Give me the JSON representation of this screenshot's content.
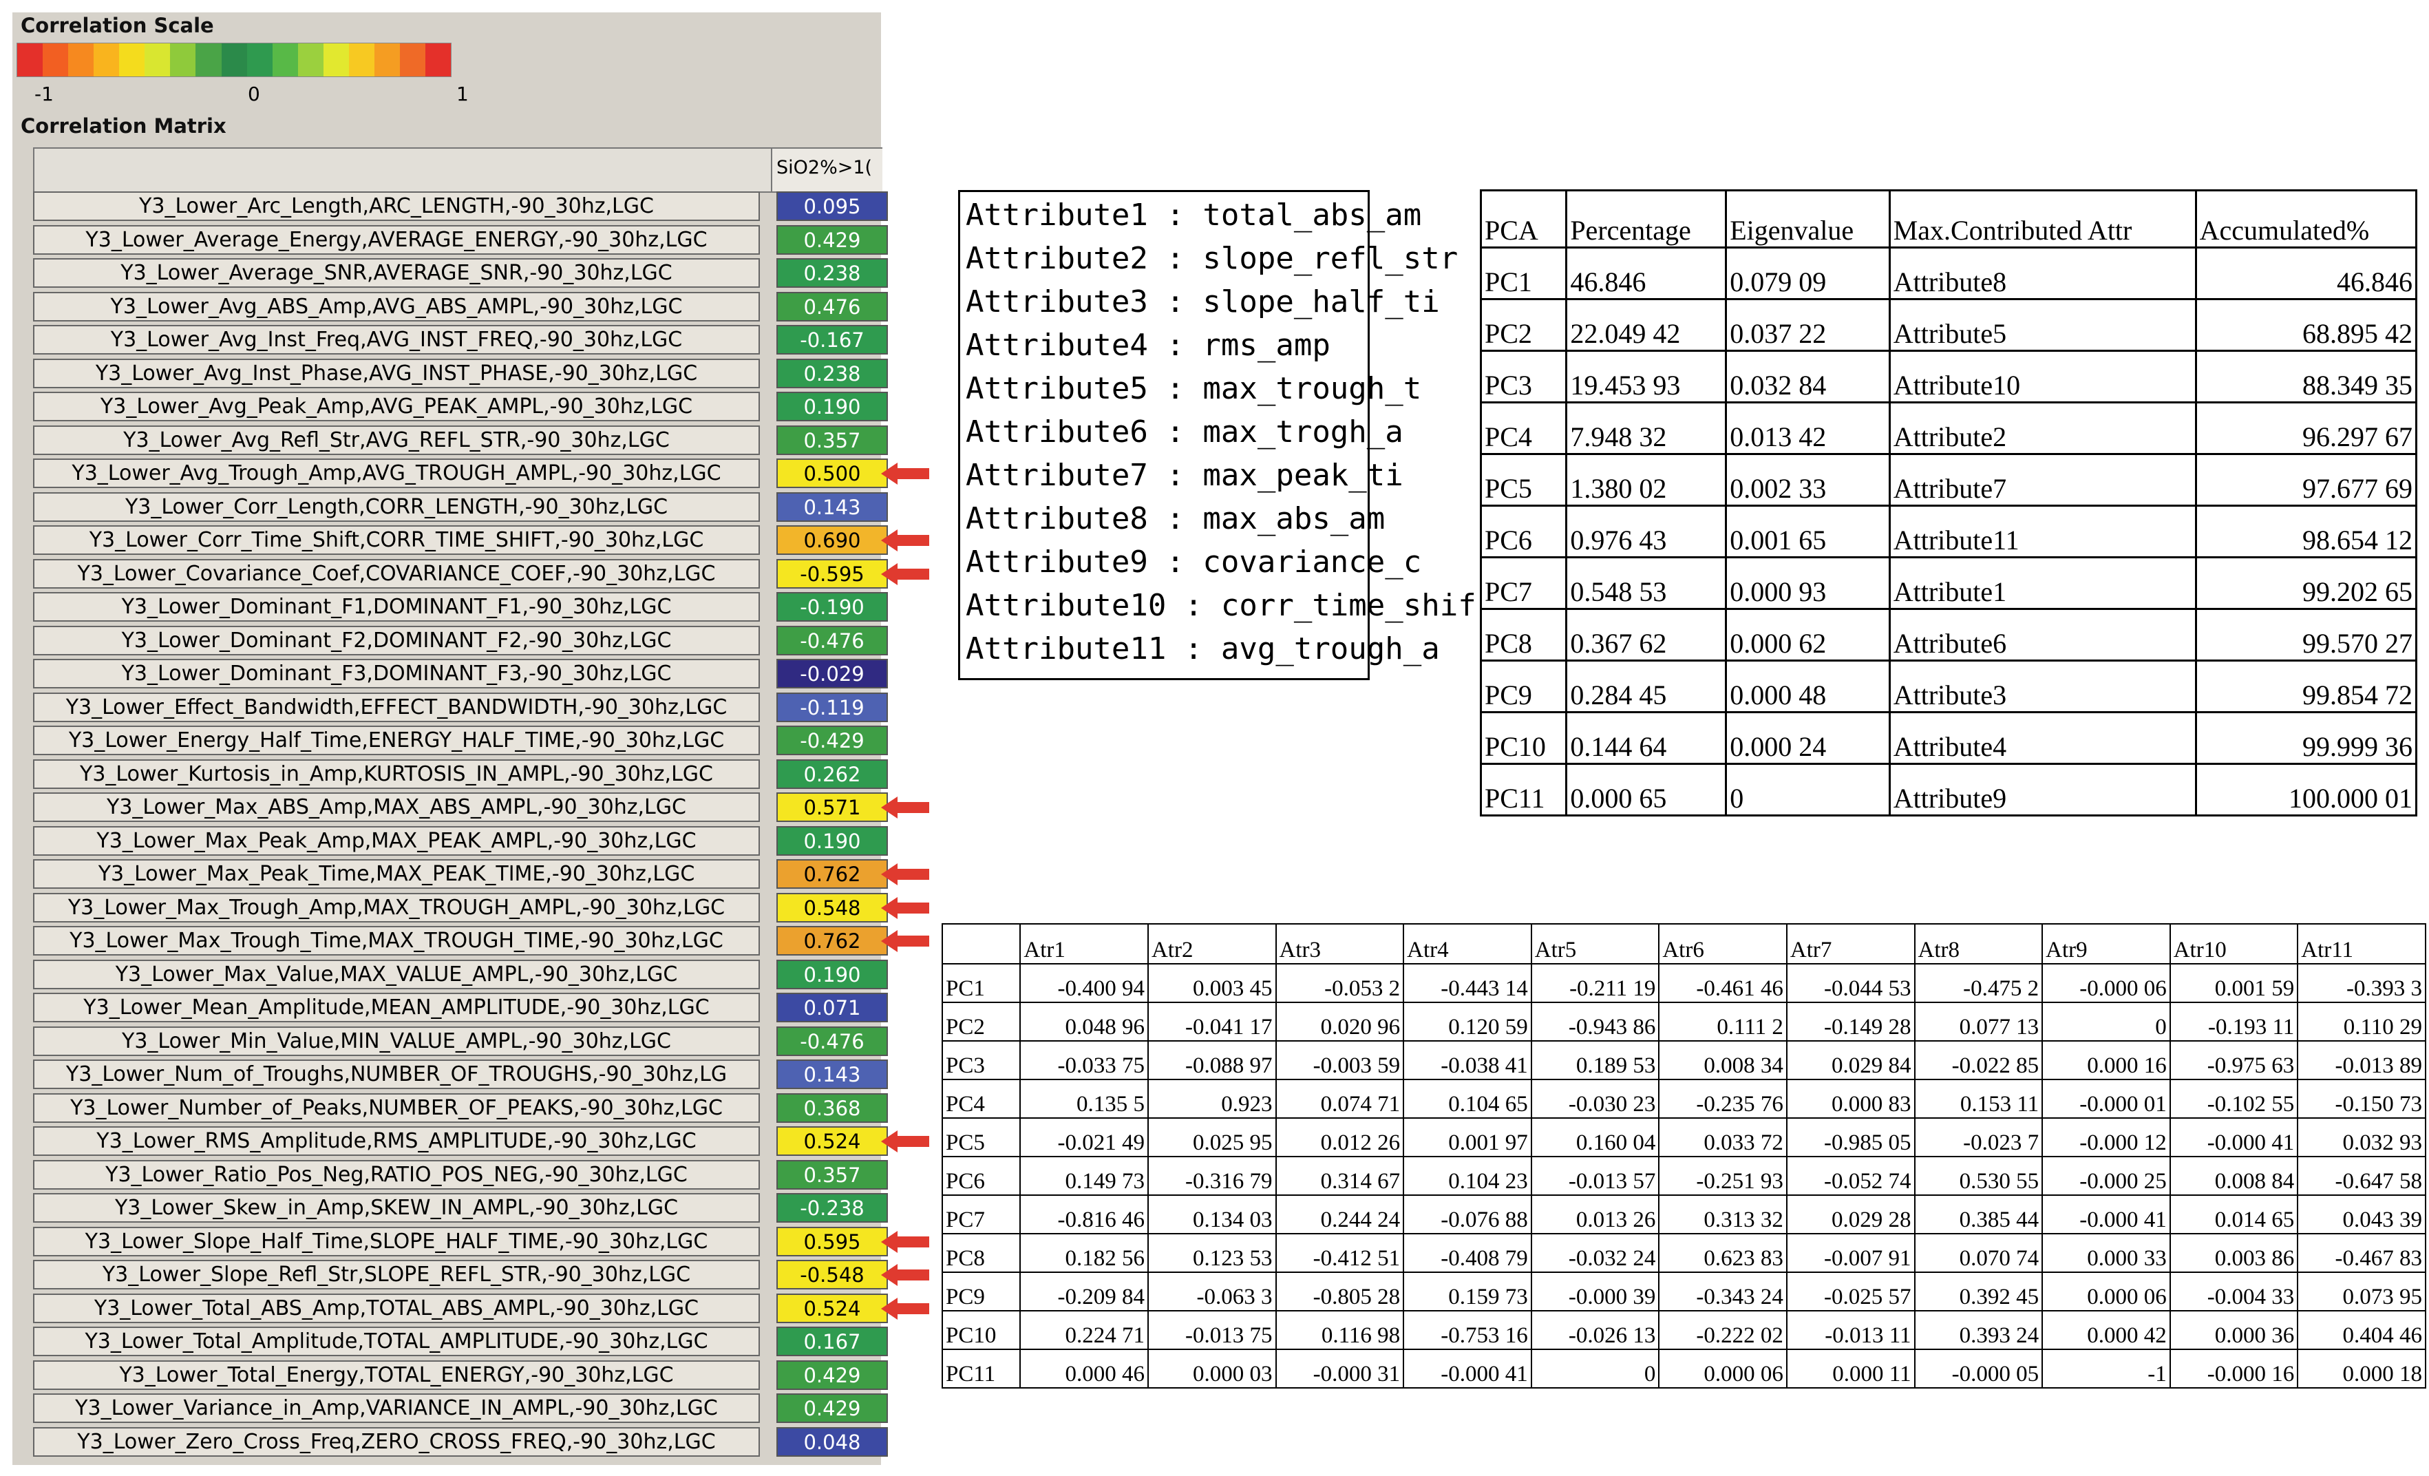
{
  "scale": {
    "title": "Correlation Scale",
    "min_label": "-1",
    "mid_label": "0",
    "max_label": "1",
    "colors": [
      "#e4302a",
      "#f25f22",
      "#f6891f",
      "#f9b41e",
      "#f4dc1d",
      "#d9e630",
      "#8fca3b",
      "#4aa447",
      "#2b8a4a",
      "#2f9a4f",
      "#58b947",
      "#9bd03e",
      "#e2e82f",
      "#f7c922",
      "#f59d22",
      "#ef6a27",
      "#e4302a"
    ]
  },
  "matrix": {
    "title": "Correlation Matrix",
    "column_header": "SiO2%>1(",
    "rows": [
      {
        "label": "Y3_Lower_Arc_Length,ARC_LENGTH,-90_30hz,LGC",
        "value": "0.095",
        "color": "#3c4aa3",
        "flag": false
      },
      {
        "label": "Y3_Lower_Average_Energy,AVERAGE_ENERGY,-90_30hz,LGC",
        "value": "0.429",
        "color": "#3e9e45",
        "flag": false
      },
      {
        "label": "Y3_Lower_Average_SNR,AVERAGE_SNR,-90_30hz,LGC",
        "value": "0.238",
        "color": "#2f9b4f",
        "flag": false
      },
      {
        "label": "Y3_Lower_Avg_ABS_Amp,AVG_ABS_AMPL,-90_30hz,LGC",
        "value": "0.476",
        "color": "#3e9e45",
        "flag": false
      },
      {
        "label": "Y3_Lower_Avg_Inst_Freq,AVG_INST_FREQ,-90_30hz,LGC",
        "value": "-0.167",
        "color": "#2f9b4f",
        "flag": false
      },
      {
        "label": "Y3_Lower_Avg_Inst_Phase,AVG_INST_PHASE,-90_30hz,LGC",
        "value": "0.238",
        "color": "#2f9b4f",
        "flag": false
      },
      {
        "label": "Y3_Lower_Avg_Peak_Amp,AVG_PEAK_AMPL,-90_30hz,LGC",
        "value": "0.190",
        "color": "#2f9b4f",
        "flag": false
      },
      {
        "label": "Y3_Lower_Avg_Refl_Str,AVG_REFL_STR,-90_30hz,LGC",
        "value": "0.357",
        "color": "#3e9e45",
        "flag": false
      },
      {
        "label": "Y3_Lower_Avg_Trough_Amp,AVG_TROUGH_AMPL,-90_30hz,LGC",
        "value": "0.500",
        "color": "#f5e620",
        "flag": true
      },
      {
        "label": "Y3_Lower_Corr_Length,CORR_LENGTH,-90_30hz,LGC",
        "value": "0.143",
        "color": "#4e62b2",
        "flag": false
      },
      {
        "label": "Y3_Lower_Corr_Time_Shift,CORR_TIME_SHIFT,-90_30hz,LGC",
        "value": "0.690",
        "color": "#f2b52a",
        "flag": true
      },
      {
        "label": "Y3_Lower_Covariance_Coef,COVARIANCE_COEF,-90_30hz,LGC",
        "value": "-0.595",
        "color": "#f5e620",
        "flag": true
      },
      {
        "label": "Y3_Lower_Dominant_F1,DOMINANT_F1,-90_30hz,LGC",
        "value": "-0.190",
        "color": "#2f9b4f",
        "flag": false
      },
      {
        "label": "Y3_Lower_Dominant_F2,DOMINANT_F2,-90_30hz,LGC",
        "value": "-0.476",
        "color": "#3e9e45",
        "flag": false
      },
      {
        "label": "Y3_Lower_Dominant_F3,DOMINANT_F3,-90_30hz,LGC",
        "value": "-0.029",
        "color": "#302a82",
        "flag": false
      },
      {
        "label": "Y3_Lower_Effect_Bandwidth,EFFECT_BANDWIDTH,-90_30hz,LGC",
        "value": "-0.119",
        "color": "#4e62b2",
        "flag": false
      },
      {
        "label": "Y3_Lower_Energy_Half_Time,ENERGY_HALF_TIME,-90_30hz,LGC",
        "value": "-0.429",
        "color": "#3e9e45",
        "flag": false
      },
      {
        "label": "Y3_Lower_Kurtosis_in_Amp,KURTOSIS_IN_AMPL,-90_30hz,LGC",
        "value": "0.262",
        "color": "#2f9b4f",
        "flag": false
      },
      {
        "label": "Y3_Lower_Max_ABS_Amp,MAX_ABS_AMPL,-90_30hz,LGC",
        "value": "0.571",
        "color": "#f5e620",
        "flag": true
      },
      {
        "label": "Y3_Lower_Max_Peak_Amp,MAX_PEAK_AMPL,-90_30hz,LGC",
        "value": "0.190",
        "color": "#2f9b4f",
        "flag": false
      },
      {
        "label": "Y3_Lower_Max_Peak_Time,MAX_PEAK_TIME,-90_30hz,LGC",
        "value": "0.762",
        "color": "#eba12e",
        "flag": true
      },
      {
        "label": "Y3_Lower_Max_Trough_Amp,MAX_TROUGH_AMPL,-90_30hz,LGC",
        "value": "0.548",
        "color": "#f5e620",
        "flag": true
      },
      {
        "label": "Y3_Lower_Max_Trough_Time,MAX_TROUGH_TIME,-90_30hz,LGC",
        "value": "0.762",
        "color": "#eba12e",
        "flag": true
      },
      {
        "label": "Y3_Lower_Max_Value,MAX_VALUE_AMPL,-90_30hz,LGC",
        "value": "0.190",
        "color": "#2f9b4f",
        "flag": false
      },
      {
        "label": "Y3_Lower_Mean_Amplitude,MEAN_AMPLITUDE,-90_30hz,LGC",
        "value": "0.071",
        "color": "#3c4aa3",
        "flag": false
      },
      {
        "label": "Y3_Lower_Min_Value,MIN_VALUE_AMPL,-90_30hz,LGC",
        "value": "-0.476",
        "color": "#3e9e45",
        "flag": false
      },
      {
        "label": "Y3_Lower_Num_of_Troughs,NUMBER_OF_TROUGHS,-90_30hz,LG",
        "value": "0.143",
        "color": "#4e62b2",
        "flag": false
      },
      {
        "label": "Y3_Lower_Number_of_Peaks,NUMBER_OF_PEAKS,-90_30hz,LGC",
        "value": "0.368",
        "color": "#3e9e45",
        "flag": false
      },
      {
        "label": "Y3_Lower_RMS_Amplitude,RMS_AMPLITUDE,-90_30hz,LGC",
        "value": "0.524",
        "color": "#f5e620",
        "flag": true
      },
      {
        "label": "Y3_Lower_Ratio_Pos_Neg,RATIO_POS_NEG,-90_30hz,LGC",
        "value": "0.357",
        "color": "#3e9e45",
        "flag": false
      },
      {
        "label": "Y3_Lower_Skew_in_Amp,SKEW_IN_AMPL,-90_30hz,LGC",
        "value": "-0.238",
        "color": "#2f9b4f",
        "flag": false
      },
      {
        "label": "Y3_Lower_Slope_Half_Time,SLOPE_HALF_TIME,-90_30hz,LGC",
        "value": "0.595",
        "color": "#f5e620",
        "flag": true
      },
      {
        "label": "Y3_Lower_Slope_Refl_Str,SLOPE_REFL_STR,-90_30hz,LGC",
        "value": "-0.548",
        "color": "#f5e620",
        "flag": true
      },
      {
        "label": "Y3_Lower_Total_ABS_Amp,TOTAL_ABS_AMPL,-90_30hz,LGC",
        "value": "0.524",
        "color": "#f5e620",
        "flag": true
      },
      {
        "label": "Y3_Lower_Total_Amplitude,TOTAL_AMPLITUDE,-90_30hz,LGC",
        "value": "0.167",
        "color": "#2f9b4f",
        "flag": false
      },
      {
        "label": "Y3_Lower_Total_Energy,TOTAL_ENERGY,-90_30hz,LGC",
        "value": "0.429",
        "color": "#3e9e45",
        "flag": false
      },
      {
        "label": "Y3_Lower_Variance_in_Amp,VARIANCE_IN_AMPL,-90_30hz,LGC",
        "value": "0.429",
        "color": "#3e9e45",
        "flag": false
      },
      {
        "label": "Y3_Lower_Zero_Cross_Freq,ZERO_CROSS_FREQ,-90_30hz,LGC",
        "value": "0.048",
        "color": "#3c4aa3",
        "flag": false
      }
    ]
  },
  "attributes": [
    "Attribute1 : total_abs_am",
    "Attribute2 : slope_refl_str",
    "Attribute3 : slope_half_ti",
    "Attribute4 : rms_amp",
    "Attribute5 : max_trough_t",
    "Attribute6 : max_trogh_a",
    "Attribute7 : max_peak_ti",
    "Attribute8 : max_abs_am",
    "Attribute9 : covariance_c",
    "Attribute10 : corr_time_shif",
    "Attribute11 : avg_trough_a"
  ],
  "pca_table": {
    "headers": [
      "PCA",
      "Percentage",
      "Eigenvalue",
      "Max.Contributed Attr",
      "Accumulated%"
    ],
    "rows": [
      [
        "PC1",
        "46.846",
        "0.079 09",
        "Attribute8",
        "46.846"
      ],
      [
        "PC2",
        "22.049 42",
        "0.037 22",
        "Attribute5",
        "68.895 42"
      ],
      [
        "PC3",
        "19.453 93",
        "0.032 84",
        "Attribute10",
        "88.349 35"
      ],
      [
        "PC4",
        "7.948 32",
        "0.013 42",
        "Attribute2",
        "96.297 67"
      ],
      [
        "PC5",
        "1.380 02",
        "0.002 33",
        "Attribute7",
        "97.677 69"
      ],
      [
        "PC6",
        "0.976 43",
        "0.001 65",
        "Attribute11",
        "98.654 12"
      ],
      [
        "PC7",
        "0.548 53",
        "0.000 93",
        "Attribute1",
        "99.202 65"
      ],
      [
        "PC8",
        "0.367 62",
        "0.000 62",
        "Attribute6",
        "99.570 27"
      ],
      [
        "PC9",
        "0.284 45",
        "0.000 48",
        "Attribute3",
        "99.854 72"
      ],
      [
        "PC10",
        "0.144 64",
        "0.000 24",
        "Attribute4",
        "99.999 36"
      ],
      [
        "PC11",
        "0.000 65",
        "0",
        "Attribute9",
        "100.000 01"
      ]
    ]
  },
  "loading_table": {
    "headers": [
      "",
      "Atr1",
      "Atr2",
      "Atr3",
      "Atr4",
      "Atr5",
      "Atr6",
      "Atr7",
      "Atr8",
      "Atr9",
      "Atr10",
      "Atr11"
    ],
    "rows": [
      [
        "PC1",
        "-0.400 94",
        "0.003 45",
        "-0.053 2",
        "-0.443 14",
        "-0.211 19",
        "-0.461 46",
        "-0.044 53",
        "-0.475 2",
        "-0.000 06",
        "0.001 59",
        "-0.393 3"
      ],
      [
        "PC2",
        "0.048 96",
        "-0.041 17",
        "0.020 96",
        "0.120 59",
        "-0.943 86",
        "0.111 2",
        "-0.149 28",
        "0.077 13",
        "0",
        "-0.193 11",
        "0.110 29"
      ],
      [
        "PC3",
        "-0.033 75",
        "-0.088 97",
        "-0.003 59",
        "-0.038 41",
        "0.189 53",
        "0.008 34",
        "0.029 84",
        "-0.022 85",
        "0.000 16",
        "-0.975 63",
        "-0.013 89"
      ],
      [
        "PC4",
        "0.135 5",
        "0.923",
        "0.074 71",
        "0.104 65",
        "-0.030 23",
        "-0.235 76",
        "0.000 83",
        "0.153 11",
        "-0.000 01",
        "-0.102 55",
        "-0.150 73"
      ],
      [
        "PC5",
        "-0.021 49",
        "0.025 95",
        "0.012 26",
        "0.001 97",
        "0.160 04",
        "0.033 72",
        "-0.985 05",
        "-0.023 7",
        "-0.000 12",
        "-0.000 41",
        "0.032 93"
      ],
      [
        "PC6",
        "0.149 73",
        "-0.316 79",
        "0.314 67",
        "0.104 23",
        "-0.013 57",
        "-0.251 93",
        "-0.052 74",
        "0.530 55",
        "-0.000 25",
        "0.008 84",
        "-0.647 58"
      ],
      [
        "PC7",
        "-0.816 46",
        "0.134 03",
        "0.244 24",
        "-0.076 88",
        "0.013 26",
        "0.313 32",
        "0.029 28",
        "0.385 44",
        "-0.000 41",
        "0.014 65",
        "0.043 39"
      ],
      [
        "PC8",
        "0.182 56",
        "0.123 53",
        "-0.412 51",
        "-0.408 79",
        "-0.032 24",
        "0.623 83",
        "-0.007 91",
        "0.070 74",
        "0.000 33",
        "0.003 86",
        "-0.467 83"
      ],
      [
        "PC9",
        "-0.209 84",
        "-0.063 3",
        "-0.805 28",
        "0.159 73",
        "-0.000 39",
        "-0.343 24",
        "-0.025 57",
        "0.392 45",
        "0.000 06",
        "-0.004 33",
        "0.073 95"
      ],
      [
        "PC10",
        "0.224 71",
        "-0.013 75",
        "0.116 98",
        "-0.753 16",
        "-0.026 13",
        "-0.222 02",
        "-0.013 11",
        "0.393 24",
        "0.000 42",
        "0.000 36",
        "0.404 46"
      ],
      [
        "PC11",
        "0.000 46",
        "0.000 03",
        "-0.000 31",
        "-0.000 41",
        "0",
        "0.000 06",
        "0.000 11",
        "-0.000 05",
        "-1",
        "-0.000 16",
        "0.000 18"
      ]
    ]
  }
}
